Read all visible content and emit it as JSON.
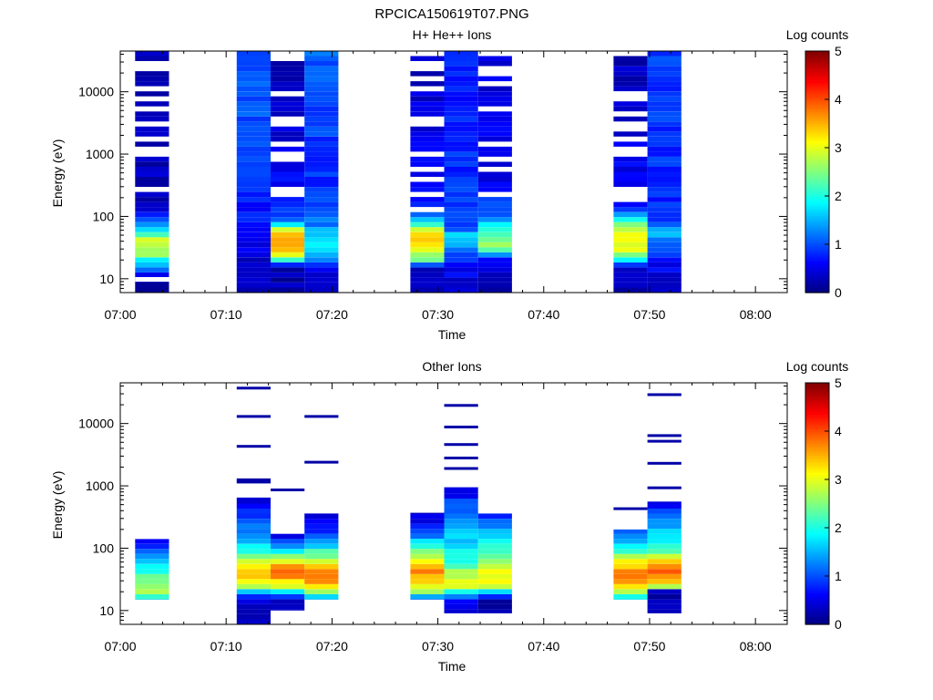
{
  "figure": {
    "filename": "RPCICA150619T07.PNG"
  },
  "colorbar": {
    "label": "Log counts",
    "ticks": [
      "0",
      "1",
      "2",
      "3",
      "4",
      "5"
    ],
    "range": [
      0,
      5
    ],
    "colormap": "jet"
  },
  "chart_data": [
    {
      "type": "heatmap",
      "title": "H+ He++ Ions",
      "xlabel": "Time",
      "ylabel": "Energy (eV)",
      "x_ticks": [
        "07:00",
        "07:10",
        "07:20",
        "07:30",
        "07:40",
        "07:50",
        "08:00"
      ],
      "y_ticks": [
        "10",
        "100",
        "1000",
        "10000"
      ],
      "y_scale": "log",
      "xlim_minutes": [
        0,
        63
      ],
      "ylim": [
        6,
        45000
      ],
      "colorbar_label": "Log counts",
      "columns": [
        {
          "t_start": 1.4,
          "t_end": 4.6,
          "profile": [
            [
              9,
              0.2
            ],
            [
              18,
              1.6
            ],
            [
              25,
              2.7
            ],
            [
              40,
              3.0
            ],
            [
              60,
              1.8
            ],
            [
              100,
              0.8
            ],
            [
              140,
              0.3
            ]
          ],
          "sparse_above": 140,
          "gap_below": 9,
          "gap_height": 5
        },
        {
          "t_start": 11.0,
          "t_end": 14.2,
          "profile": [
            [
              6,
              0.3
            ],
            [
              40,
              0.5
            ],
            [
              100,
              0.7
            ],
            [
              400,
              0.9
            ],
            [
              2000,
              1.0
            ],
            [
              45000,
              1.1
            ]
          ],
          "sparse_above": 100000,
          "gap_below": 0,
          "gap_height": 0
        },
        {
          "t_start": 14.2,
          "t_end": 17.4,
          "profile": [
            [
              6,
              0.2
            ],
            [
              15,
              0.3
            ],
            [
              25,
              3.2
            ],
            [
              40,
              3.7
            ],
            [
              60,
              3.0
            ],
            [
              80,
              1.2
            ],
            [
              200,
              0.6
            ],
            [
              45000,
              0.3
            ]
          ],
          "sparse_above": 200,
          "gap_below": 0,
          "gap_height": 0
        },
        {
          "t_start": 17.4,
          "t_end": 20.6,
          "profile": [
            [
              6,
              0.4
            ],
            [
              15,
              0.5
            ],
            [
              25,
              1.6
            ],
            [
              40,
              1.9
            ],
            [
              80,
              1.2
            ],
            [
              300,
              0.8
            ],
            [
              45000,
              1.1
            ]
          ],
          "sparse_above": 100000,
          "gap_below": 0,
          "gap_height": 0
        },
        {
          "t_start": 27.4,
          "t_end": 30.6,
          "profile": [
            [
              6,
              0.3
            ],
            [
              15,
              0.3
            ],
            [
              20,
              2.3
            ],
            [
              30,
              3.1
            ],
            [
              50,
              3.3
            ],
            [
              80,
              2.0
            ],
            [
              120,
              0.7
            ],
            [
              45000,
              0.3
            ]
          ],
          "sparse_above": 120,
          "gap_below": 0,
          "gap_height": 0
        },
        {
          "t_start": 30.6,
          "t_end": 33.8,
          "profile": [
            [
              10,
              0.5
            ],
            [
              20,
              0.8
            ],
            [
              30,
              1.3
            ],
            [
              50,
              1.6
            ],
            [
              70,
              0.9
            ],
            [
              45000,
              0.7
            ]
          ],
          "sparse_above": 100000,
          "gap_below": 0,
          "gap_height": 0
        },
        {
          "t_start": 33.8,
          "t_end": 37.0,
          "profile": [
            [
              6,
              0.2
            ],
            [
              20,
              0.5
            ],
            [
              30,
              2.6
            ],
            [
              60,
              2.2
            ],
            [
              100,
              1.2
            ],
            [
              300,
              0.5
            ],
            [
              45000,
              0.5
            ]
          ],
          "sparse_above": 200,
          "gap_below": 0,
          "gap_height": 0
        },
        {
          "t_start": 46.6,
          "t_end": 49.8,
          "profile": [
            [
              6,
              0.2
            ],
            [
              15,
              0.4
            ],
            [
              25,
              2.8
            ],
            [
              40,
              3.2
            ],
            [
              60,
              2.9
            ],
            [
              100,
              1.6
            ],
            [
              160,
              0.6
            ],
            [
              45000,
              0.3
            ]
          ],
          "sparse_above": 160,
          "gap_below": 0,
          "gap_height": 0
        },
        {
          "t_start": 49.8,
          "t_end": 53.0,
          "profile": [
            [
              6,
              0.4
            ],
            [
              20,
              0.6
            ],
            [
              40,
              1.3
            ],
            [
              60,
              1.5
            ],
            [
              100,
              0.8
            ],
            [
              45000,
              0.9
            ]
          ],
          "sparse_above": 100000,
          "gap_below": 0,
          "gap_height": 0
        }
      ]
    },
    {
      "type": "heatmap",
      "title": "Other Ions",
      "xlabel": "Time",
      "ylabel": "Energy (eV)",
      "x_ticks": [
        "07:00",
        "07:10",
        "07:20",
        "07:30",
        "07:40",
        "07:50",
        "08:00"
      ],
      "y_ticks": [
        "10",
        "100",
        "1000",
        "10000"
      ],
      "y_scale": "log",
      "xlim_minutes": [
        0,
        63
      ],
      "ylim": [
        6,
        45000
      ],
      "colorbar_label": "Log counts",
      "columns": [
        {
          "e_min": 15,
          "e_max": 140,
          "t_start": 1.4,
          "t_end": 4.6,
          "profile": [
            [
              15,
              1.4
            ],
            [
              20,
              2.9
            ],
            [
              35,
              2.4
            ],
            [
              60,
              1.5
            ],
            [
              100,
              1.0
            ],
            [
              140,
              0.6
            ]
          ],
          "lines": []
        },
        {
          "e_min": 6,
          "e_max": 650,
          "t_start": 11.0,
          "t_end": 14.2,
          "profile": [
            [
              6,
              0.3
            ],
            [
              12,
              0.3
            ],
            [
              15,
              0.4
            ],
            [
              25,
              2.8
            ],
            [
              40,
              3.5
            ],
            [
              60,
              3.0
            ],
            [
              100,
              1.8
            ],
            [
              250,
              1.0
            ],
            [
              650,
              0.5
            ]
          ],
          "lines": [
            1150,
            1250,
            4300,
            13000,
            37000
          ]
        },
        {
          "e_min": 10,
          "e_max": 170,
          "t_start": 14.2,
          "t_end": 17.4,
          "profile": [
            [
              10,
              0.3
            ],
            [
              15,
              0.2
            ],
            [
              25,
              3.0
            ],
            [
              40,
              4.0
            ],
            [
              60,
              3.2
            ],
            [
              100,
              1.4
            ],
            [
              170,
              0.4
            ]
          ],
          "lines": [
            860
          ]
        },
        {
          "e_min": 15,
          "e_max": 360,
          "t_start": 17.4,
          "t_end": 20.6,
          "profile": [
            [
              15,
              1.3
            ],
            [
              20,
              2.8
            ],
            [
              30,
              3.9
            ],
            [
              50,
              3.4
            ],
            [
              80,
              2.4
            ],
            [
              150,
              1.0
            ],
            [
              360,
              0.4
            ]
          ],
          "lines": [
            2400,
            13000
          ]
        },
        {
          "e_min": 15,
          "e_max": 370,
          "t_start": 27.4,
          "t_end": 30.6,
          "profile": [
            [
              15,
              0.8
            ],
            [
              20,
              2.7
            ],
            [
              40,
              3.7
            ],
            [
              60,
              3.3
            ],
            [
              100,
              2.2
            ],
            [
              200,
              0.8
            ],
            [
              370,
              0.3
            ]
          ],
          "lines": []
        },
        {
          "e_min": 9,
          "e_max": 950,
          "t_start": 30.6,
          "t_end": 33.8,
          "profile": [
            [
              9,
              0.3
            ],
            [
              15,
              0.6
            ],
            [
              25,
              3.0
            ],
            [
              40,
              2.7
            ],
            [
              60,
              2.0
            ],
            [
              150,
              1.6
            ],
            [
              400,
              1.2
            ],
            [
              950,
              0.4
            ]
          ],
          "lines": [
            1900,
            2800,
            4600,
            8800,
            19500
          ]
        },
        {
          "e_min": 9,
          "e_max": 360,
          "t_start": 33.8,
          "t_end": 37.0,
          "profile": [
            [
              9,
              0.2
            ],
            [
              15,
              0.3
            ],
            [
              25,
              3.0
            ],
            [
              40,
              3.1
            ],
            [
              80,
              2.4
            ],
            [
              200,
              1.5
            ],
            [
              360,
              0.8
            ]
          ],
          "lines": []
        },
        {
          "e_min": 15,
          "e_max": 200,
          "t_start": 46.6,
          "t_end": 49.8,
          "profile": [
            [
              15,
              1.5
            ],
            [
              20,
              2.8
            ],
            [
              35,
              3.9
            ],
            [
              60,
              3.2
            ],
            [
              100,
              2.0
            ],
            [
              200,
              0.8
            ]
          ],
          "lines": [
            430
          ]
        },
        {
          "e_min": 9,
          "e_max": 560,
          "t_start": 49.8,
          "t_end": 53.0,
          "profile": [
            [
              9,
              0.2
            ],
            [
              20,
              0.3
            ],
            [
              25,
              3.0
            ],
            [
              40,
              4.1
            ],
            [
              60,
              3.3
            ],
            [
              100,
              2.0
            ],
            [
              250,
              1.4
            ],
            [
              560,
              0.5
            ]
          ],
          "lines": [
            930,
            2300,
            5200,
            6400,
            29000
          ]
        }
      ]
    }
  ]
}
